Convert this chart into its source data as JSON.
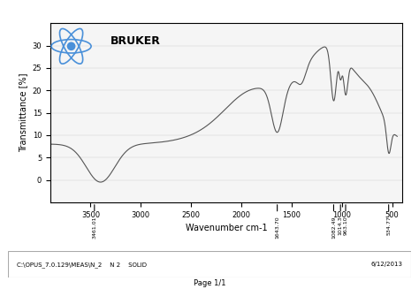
{
  "title": "",
  "xlabel": "Wavenumber cm-1",
  "ylabel": "Transmittance [%]",
  "xmin": 3900,
  "xmax": 400,
  "ymin": -5,
  "ymax": 35,
  "yticks": [
    0,
    5,
    10,
    15,
    20,
    25,
    30
  ],
  "xticks": [
    3500,
    3000,
    2500,
    2000,
    1500,
    1000,
    500
  ],
  "line_color": "#555555",
  "bg_color": "#ffffff",
  "plot_bg": "#f5f5f5",
  "marker_labels": [
    "3461.01",
    "1643.70",
    "1082.49",
    "1014.3",
    "963.10",
    "534.77"
  ],
  "marker_positions": [
    3461,
    1643,
    1082,
    1014,
    963,
    535
  ],
  "footer_left": "C:\\OPUS_7.0.129\\MEAS\\N_2    N 2    SOLID",
  "footer_right": "6/12/2013",
  "page_label": "Page 1/1",
  "bruker_text": "BRUKER"
}
